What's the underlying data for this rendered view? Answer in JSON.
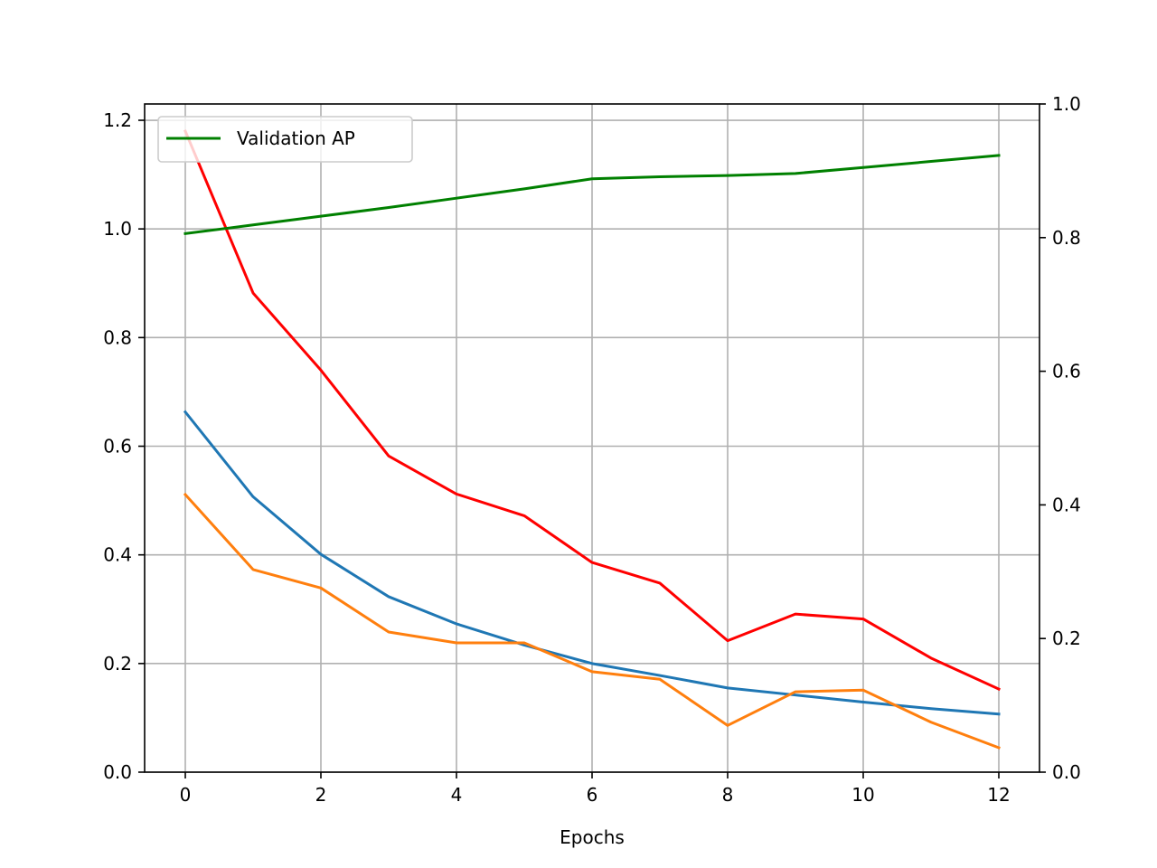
{
  "chart_data": {
    "type": "line",
    "title": "",
    "xlabel": "Epochs",
    "ylabel": "",
    "xlim": [
      -0.6,
      12.6
    ],
    "ylim": [
      0,
      1.23
    ],
    "y2lim": [
      0,
      1.0
    ],
    "x_ticks": [
      0,
      2,
      4,
      6,
      8,
      10,
      12
    ],
    "y_ticks": [
      0,
      0.2,
      0.4,
      0.6,
      0.8,
      1.0,
      1.2
    ],
    "y2_ticks": [
      0,
      0.2,
      0.4,
      0.6,
      0.8,
      1.0
    ],
    "grid": true,
    "legend": {
      "placement": "upper-left",
      "entries": [
        "Validation AP"
      ]
    },
    "x": [
      0,
      1,
      2,
      3,
      4,
      5,
      6,
      7,
      8,
      9,
      10,
      11,
      12
    ],
    "series": [
      {
        "color": "#1f77b4",
        "axis": "left",
        "values": [
          0.663,
          0.507,
          0.401,
          0.323,
          0.273,
          0.234,
          0.2,
          0.178,
          0.155,
          0.142,
          0.129,
          0.117,
          0.107
        ]
      },
      {
        "color": "#ff7f0e",
        "axis": "left",
        "values": [
          0.511,
          0.373,
          0.339,
          0.258,
          0.238,
          0.238,
          0.185,
          0.171,
          0.086,
          0.148,
          0.151,
          0.092,
          0.045
        ]
      },
      {
        "color": "#ff0000",
        "axis": "left",
        "values": [
          1.18,
          0.882,
          0.74,
          0.582,
          0.512,
          0.472,
          0.386,
          0.348,
          0.242,
          0.291,
          0.282,
          0.21,
          0.153
        ]
      },
      {
        "name": "Validation AP",
        "color": "#008000",
        "axis": "right",
        "values": [
          0.806,
          0.819,
          0.832,
          0.845,
          0.859,
          0.873,
          0.888,
          0.891,
          0.893,
          0.896,
          0.905,
          0.914,
          0.923
        ]
      }
    ]
  }
}
